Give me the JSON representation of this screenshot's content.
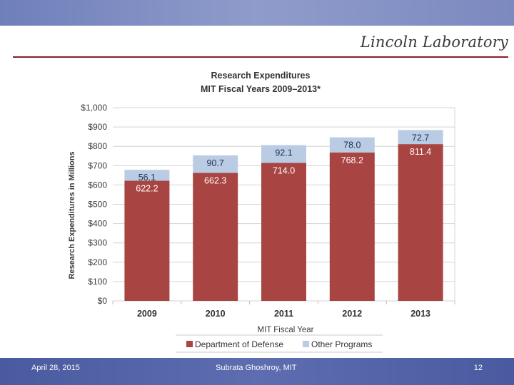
{
  "header": {
    "brand": "Lincoln Laboratory"
  },
  "footer": {
    "date": "April 28, 2015",
    "author": "Subrata Ghoshroy, MIT",
    "page": "12"
  },
  "colors": {
    "dod": "#a84442",
    "other": "#b9cce4",
    "grid": "#d4d4d4",
    "axis_text": "#3b3b3b"
  },
  "chart_data": {
    "type": "bar",
    "stacked": true,
    "title": "Research Expenditures",
    "subtitle": "MIT Fiscal Years 2009–2013*",
    "xlabel": "MIT Fiscal Year",
    "ylabel": "Research Expenditures in Millions",
    "ylim": [
      0,
      1000
    ],
    "yticks": [
      0,
      100,
      200,
      300,
      400,
      500,
      600,
      700,
      800,
      900,
      1000
    ],
    "ytick_labels": [
      "$0",
      "$100",
      "$200",
      "$300",
      "$400",
      "$500",
      "$600",
      "$700",
      "$800",
      "$900",
      "$1,000"
    ],
    "categories": [
      "2009",
      "2010",
      "2011",
      "2012",
      "2013"
    ],
    "series": [
      {
        "name": "Department of Defense",
        "values": [
          622.2,
          662.3,
          714.0,
          768.2,
          811.4
        ],
        "labels": [
          "622.2",
          "662.3",
          "714.0",
          "768.2",
          "811.4"
        ]
      },
      {
        "name": "Other Programs",
        "values": [
          56.1,
          90.7,
          92.1,
          78.0,
          72.7
        ],
        "labels": [
          "56.1",
          "90.7",
          "92.1",
          "78.0",
          "72.7"
        ]
      }
    ],
    "legend": "bottom",
    "grid": true
  }
}
